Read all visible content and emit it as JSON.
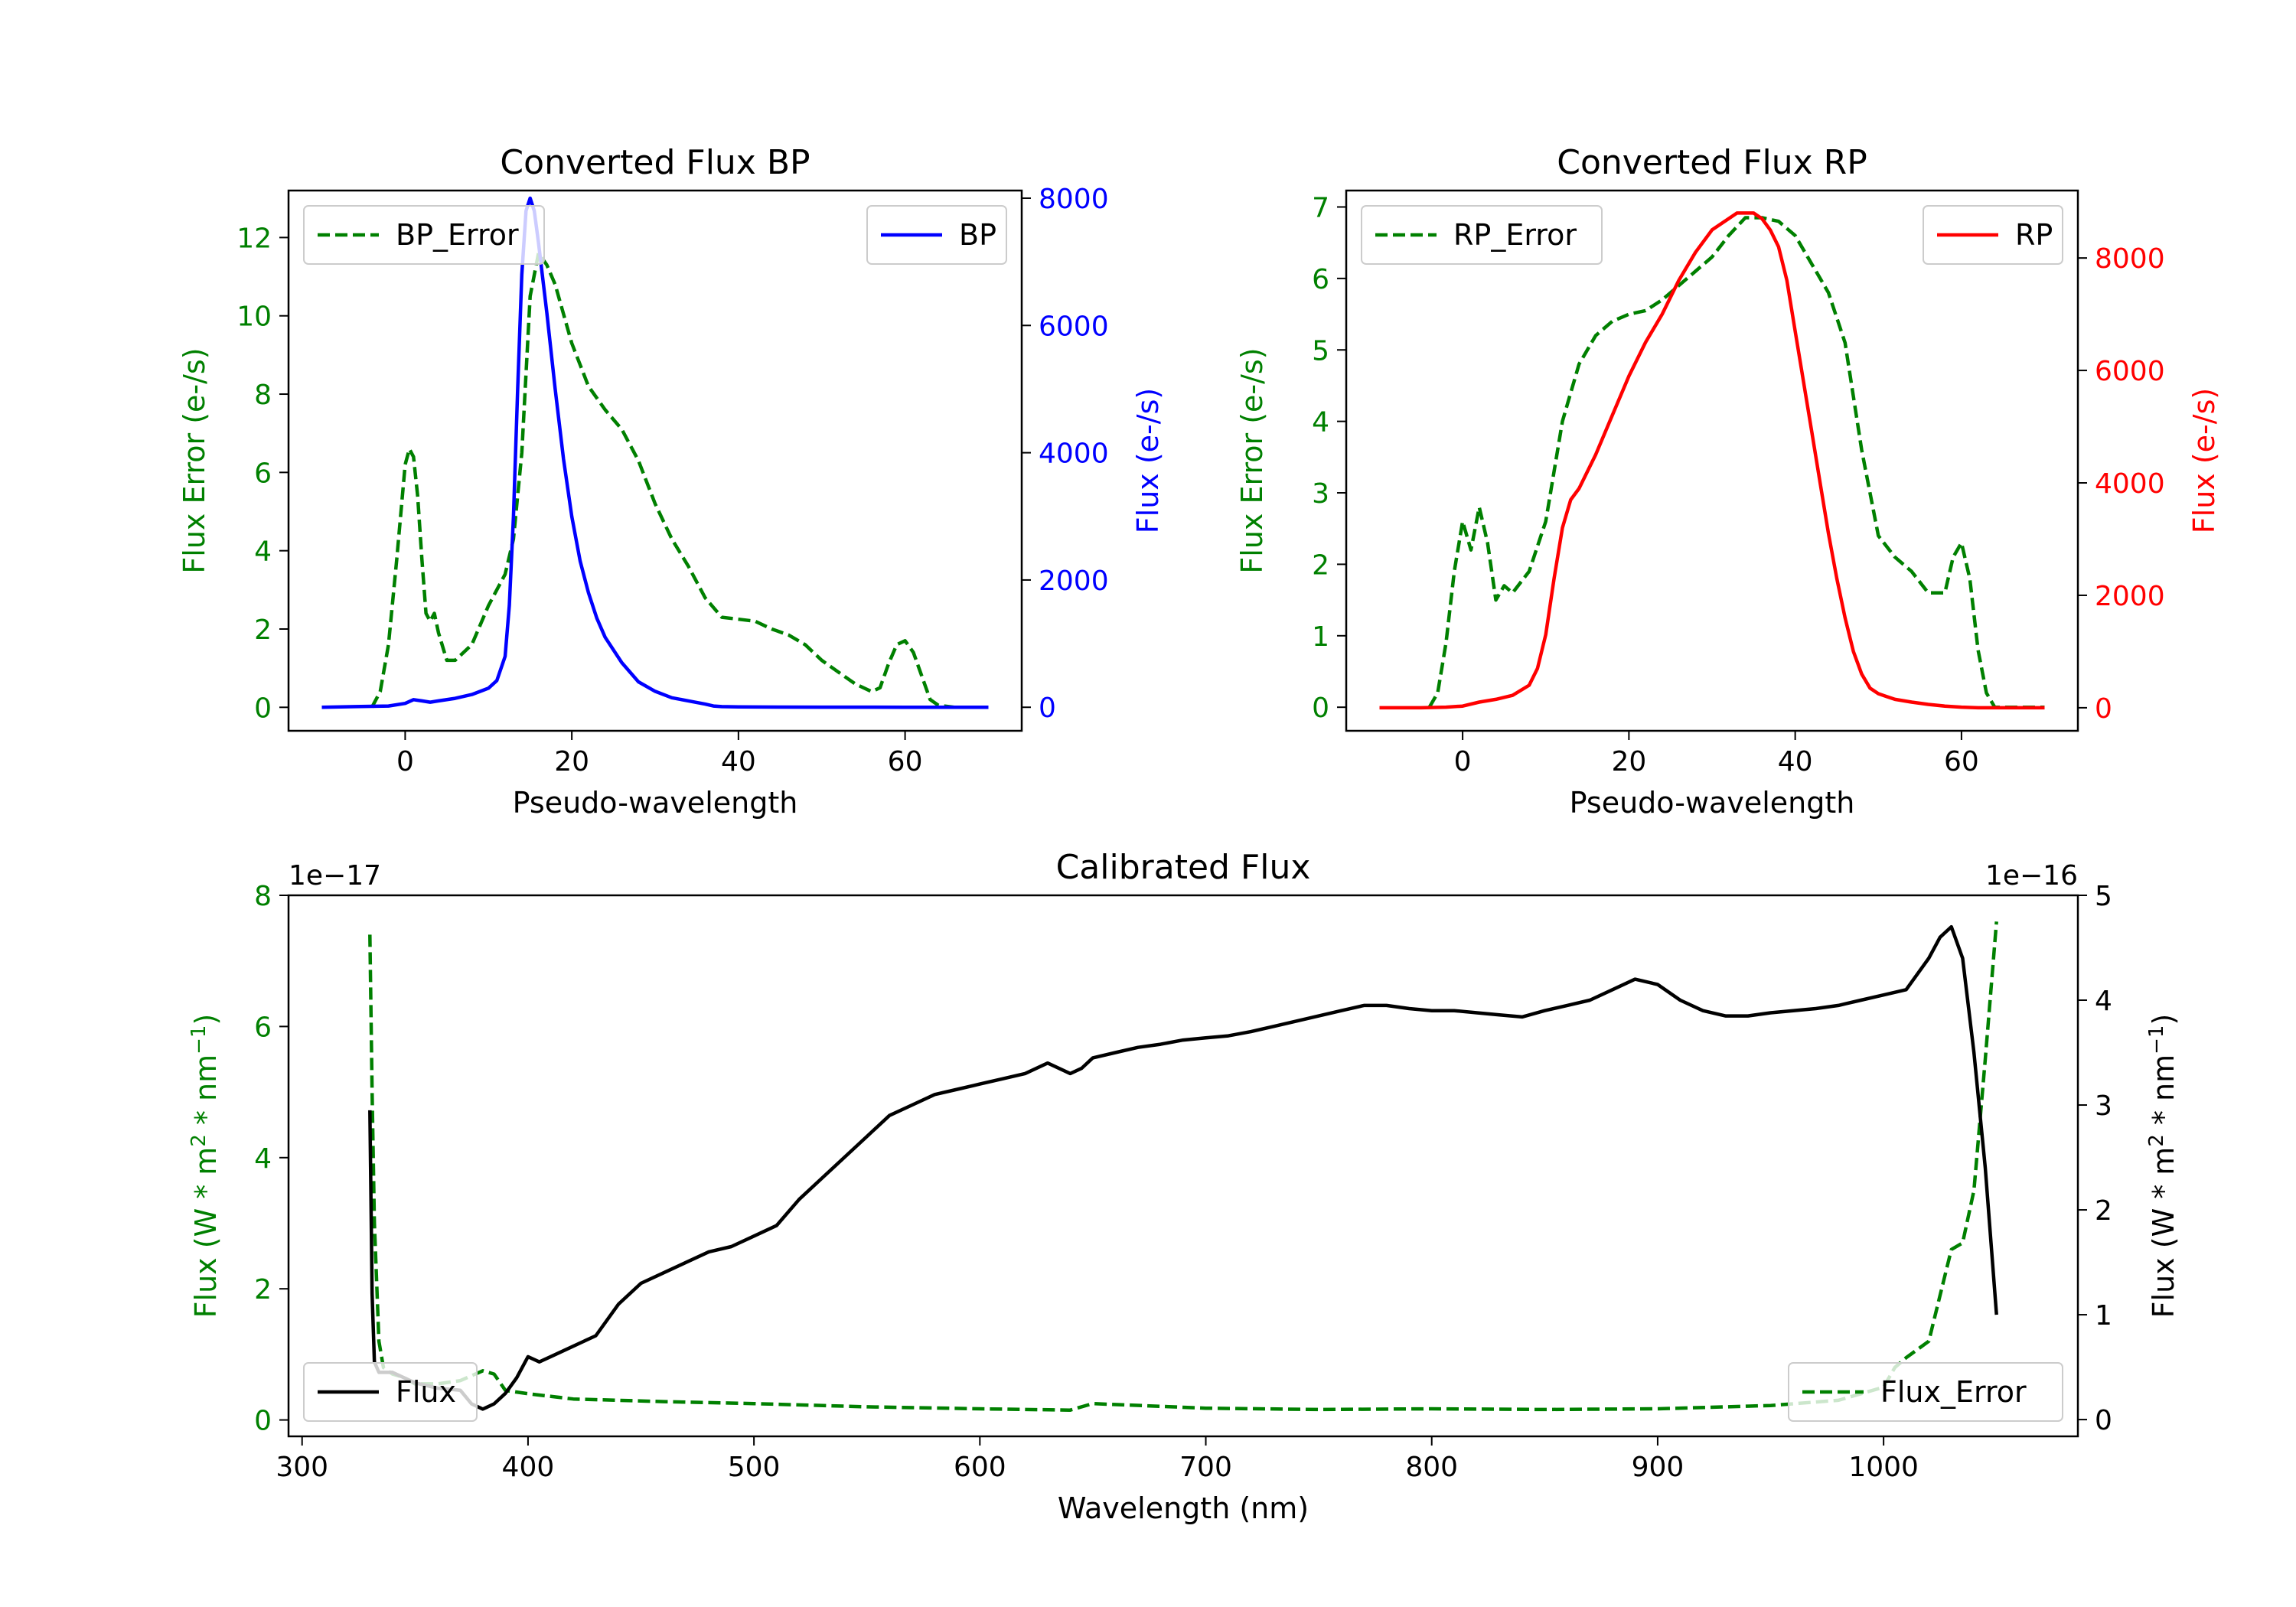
{
  "chart_data": [
    {
      "id": "bp",
      "type": "line",
      "title": "Converted Flux BP",
      "xlabel": "Pseudo-wavelength",
      "ylabel_left": "Flux Error (e-/s)",
      "ylabel_right": "Flux (e-/s)",
      "xlim": [
        -14,
        74
      ],
      "ylim_left": [
        -0.6,
        13.2
      ],
      "ylim_right": [
        -370,
        8120
      ],
      "xticks": [
        0,
        20,
        40,
        60
      ],
      "yticks_left": [
        0,
        2,
        4,
        6,
        8,
        10,
        12
      ],
      "yticks_right": [
        0,
        2000,
        4000,
        6000,
        8000
      ],
      "left_color": "#008000",
      "right_color": "#0000ff",
      "legend_left": "BP_Error",
      "legend_right": "BP",
      "series": [
        {
          "name": "BP_Error",
          "axis": "left",
          "style": "dashed",
          "color": "#008000",
          "x": [
            -4,
            -3,
            -2,
            -1,
            0,
            0.5,
            1,
            1.5,
            2,
            2.5,
            3,
            3.5,
            4,
            5,
            6,
            8,
            10,
            12,
            13,
            14,
            15,
            16,
            17,
            18,
            20,
            22,
            24,
            26,
            28,
            30,
            32,
            34,
            36,
            38,
            40,
            42,
            44,
            46,
            48,
            50,
            52,
            54,
            56,
            57,
            58,
            59,
            60,
            61,
            62,
            63,
            64,
            66,
            68,
            70
          ],
          "y": [
            0,
            0.4,
            1.6,
            3.8,
            6.2,
            6.6,
            6.4,
            5.4,
            3.8,
            2.4,
            2.2,
            2.4,
            1.9,
            1.2,
            1.2,
            1.6,
            2.6,
            3.4,
            4.3,
            6.5,
            10.5,
            11.6,
            11.3,
            10.8,
            9.3,
            8.2,
            7.6,
            7.1,
            6.3,
            5.2,
            4.3,
            3.6,
            2.8,
            2.3,
            2.25,
            2.2,
            2.0,
            1.85,
            1.6,
            1.2,
            0.9,
            0.6,
            0.4,
            0.5,
            1.1,
            1.6,
            1.7,
            1.4,
            0.8,
            0.2,
            0.05,
            0,
            0,
            0
          ]
        },
        {
          "name": "BP",
          "axis": "right",
          "style": "solid",
          "color": "#0000ff",
          "x": [
            -10,
            -6,
            -2,
            0,
            1,
            2,
            3,
            4,
            6,
            8,
            10,
            11,
            12,
            12.5,
            13,
            13.5,
            14,
            14.5,
            15,
            15.5,
            16,
            17,
            18,
            19,
            20,
            21,
            22,
            23,
            24,
            26,
            28,
            30,
            32,
            34,
            36,
            37,
            38,
            40,
            45,
            50,
            55,
            60,
            65,
            70
          ],
          "y": [
            0,
            10,
            20,
            60,
            120,
            100,
            80,
            100,
            140,
            200,
            300,
            420,
            800,
            1600,
            3000,
            5000,
            6800,
            7800,
            8000,
            7800,
            7300,
            6200,
            5000,
            3900,
            3000,
            2300,
            1800,
            1400,
            1100,
            700,
            400,
            250,
            150,
            100,
            50,
            20,
            10,
            5,
            3,
            2,
            1,
            0,
            0,
            0
          ]
        }
      ]
    },
    {
      "id": "rp",
      "type": "line",
      "title": "Converted Flux RP",
      "xlabel": "Pseudo-wavelength",
      "ylabel_left": "Flux Error (e-/s)",
      "ylabel_right": "Flux (e-/s)",
      "xlim": [
        -14,
        74
      ],
      "ylim_left": [
        -0.33,
        7.23
      ],
      "ylim_right": [
        -410,
        9200
      ],
      "xticks": [
        0,
        20,
        40,
        60
      ],
      "yticks_left": [
        0,
        1,
        2,
        3,
        4,
        5,
        6,
        7
      ],
      "yticks_right": [
        0,
        2000,
        4000,
        6000,
        8000
      ],
      "left_color": "#008000",
      "right_color": "#ff0000",
      "legend_left": "RP_Error",
      "legend_right": "RP",
      "series": [
        {
          "name": "RP_Error",
          "axis": "left",
          "style": "dashed",
          "color": "#008000",
          "x": [
            -4,
            -3,
            -2,
            -1,
            0,
            1,
            2,
            3,
            4,
            5,
            6,
            8,
            10,
            12,
            14,
            16,
            18,
            20,
            22,
            24,
            26,
            28,
            30,
            32,
            34,
            36,
            38,
            40,
            42,
            44,
            46,
            48,
            50,
            52,
            54,
            56,
            57,
            58,
            59,
            60,
            61,
            62,
            63,
            64,
            66,
            70
          ],
          "y": [
            0,
            0.2,
            0.9,
            1.9,
            2.6,
            2.2,
            2.8,
            2.3,
            1.5,
            1.7,
            1.6,
            1.9,
            2.6,
            4.0,
            4.8,
            5.2,
            5.4,
            5.5,
            5.55,
            5.7,
            5.9,
            6.1,
            6.3,
            6.6,
            6.85,
            6.85,
            6.8,
            6.6,
            6.2,
            5.8,
            5.1,
            3.6,
            2.4,
            2.1,
            1.9,
            1.6,
            1.6,
            1.6,
            2.1,
            2.3,
            1.8,
            0.8,
            0.2,
            0,
            0,
            0
          ]
        },
        {
          "name": "RP",
          "axis": "right",
          "style": "solid",
          "color": "#ff0000",
          "x": [
            -10,
            -5,
            -2,
            0,
            2,
            4,
            6,
            8,
            9,
            10,
            11,
            12,
            13,
            14,
            16,
            18,
            20,
            22,
            24,
            26,
            28,
            30,
            32,
            33,
            34,
            35,
            36,
            37,
            38,
            39,
            40,
            41,
            42,
            43,
            44,
            45,
            46,
            47,
            48,
            49,
            50,
            51,
            52,
            54,
            56,
            58,
            60,
            62,
            65,
            70
          ],
          "y": [
            0,
            0,
            10,
            30,
            100,
            150,
            220,
            400,
            700,
            1300,
            2300,
            3200,
            3700,
            3900,
            4500,
            5200,
            5900,
            6500,
            7000,
            7600,
            8100,
            8500,
            8700,
            8800,
            8800,
            8800,
            8700,
            8500,
            8200,
            7600,
            6700,
            5800,
            4900,
            4000,
            3100,
            2300,
            1600,
            1000,
            600,
            350,
            250,
            200,
            150,
            100,
            60,
            30,
            10,
            0,
            0,
            0
          ]
        }
      ]
    },
    {
      "id": "cal",
      "type": "line",
      "title": "Calibrated Flux",
      "xlabel": "Wavelength (nm)",
      "ylabel_left": "Flux (W * m",
      "ylabel_right": "Flux (W * m",
      "ylabel_mid": " * nm",
      "ylabel_sup2": "2",
      "ylabel_supneg": "−1",
      "ylabel_close": ")",
      "left_offset": "1e−17",
      "right_offset": "1e−16",
      "xlim": [
        294,
        1086
      ],
      "ylim_left": [
        -0.25,
        8.0
      ],
      "ylim_right": [
        -0.16,
        5.0
      ],
      "xticks": [
        300,
        400,
        500,
        600,
        700,
        800,
        900,
        1000
      ],
      "yticks_left": [
        0,
        2,
        4,
        6,
        8
      ],
      "yticks_right": [
        0,
        1,
        2,
        3,
        4,
        5
      ],
      "left_color": "#008000",
      "right_color": "#000000",
      "legend_left": "Flux",
      "legend_right": "Flux_Error",
      "series": [
        {
          "name": "Flux_Error",
          "axis": "left",
          "style": "dashed",
          "color": "#008000",
          "x": [
            330,
            331,
            332,
            334,
            336,
            340,
            345,
            350,
            360,
            370,
            380,
            385,
            390,
            400,
            420,
            440,
            460,
            500,
            550,
            600,
            640,
            650,
            700,
            750,
            800,
            850,
            900,
            950,
            980,
            1000,
            1005,
            1010,
            1020,
            1025,
            1030,
            1035,
            1040,
            1045,
            1050
          ],
          "y": [
            7.4,
            5.0,
            3.0,
            1.2,
            0.8,
            0.7,
            0.65,
            0.55,
            0.55,
            0.6,
            0.75,
            0.7,
            0.45,
            0.4,
            0.32,
            0.3,
            0.28,
            0.25,
            0.2,
            0.17,
            0.15,
            0.25,
            0.18,
            0.16,
            0.17,
            0.16,
            0.17,
            0.22,
            0.3,
            0.5,
            0.8,
            0.95,
            1.2,
            1.9,
            2.6,
            2.7,
            3.5,
            5.5,
            7.6
          ]
        },
        {
          "name": "Flux",
          "axis": "right",
          "style": "solid",
          "color": "#000000",
          "x": [
            330,
            331,
            332,
            334,
            340,
            350,
            360,
            370,
            375,
            380,
            385,
            390,
            395,
            400,
            405,
            410,
            420,
            430,
            440,
            450,
            460,
            470,
            480,
            490,
            500,
            510,
            520,
            530,
            540,
            550,
            560,
            570,
            580,
            590,
            600,
            610,
            620,
            630,
            640,
            645,
            650,
            660,
            670,
            680,
            690,
            700,
            710,
            720,
            730,
            740,
            750,
            760,
            770,
            780,
            790,
            800,
            810,
            820,
            830,
            840,
            850,
            860,
            870,
            880,
            890,
            900,
            910,
            920,
            930,
            940,
            950,
            960,
            970,
            980,
            990,
            1000,
            1010,
            1020,
            1025,
            1030,
            1035,
            1040,
            1045,
            1050
          ],
          "y": [
            2.95,
            1.2,
            0.55,
            0.45,
            0.45,
            0.35,
            0.3,
            0.28,
            0.15,
            0.1,
            0.15,
            0.25,
            0.4,
            0.6,
            0.55,
            0.6,
            0.7,
            0.8,
            1.1,
            1.3,
            1.4,
            1.5,
            1.6,
            1.65,
            1.75,
            1.85,
            2.1,
            2.3,
            2.5,
            2.7,
            2.9,
            3.0,
            3.1,
            3.15,
            3.2,
            3.25,
            3.3,
            3.4,
            3.3,
            3.35,
            3.45,
            3.5,
            3.55,
            3.58,
            3.62,
            3.64,
            3.66,
            3.7,
            3.75,
            3.8,
            3.85,
            3.9,
            3.95,
            3.95,
            3.92,
            3.9,
            3.9,
            3.88,
            3.86,
            3.84,
            3.9,
            3.95,
            4.0,
            4.1,
            4.2,
            4.15,
            4.0,
            3.9,
            3.85,
            3.85,
            3.88,
            3.9,
            3.92,
            3.95,
            4.0,
            4.05,
            4.1,
            4.4,
            4.6,
            4.7,
            4.4,
            3.5,
            2.4,
            1.0
          ]
        }
      ]
    }
  ]
}
